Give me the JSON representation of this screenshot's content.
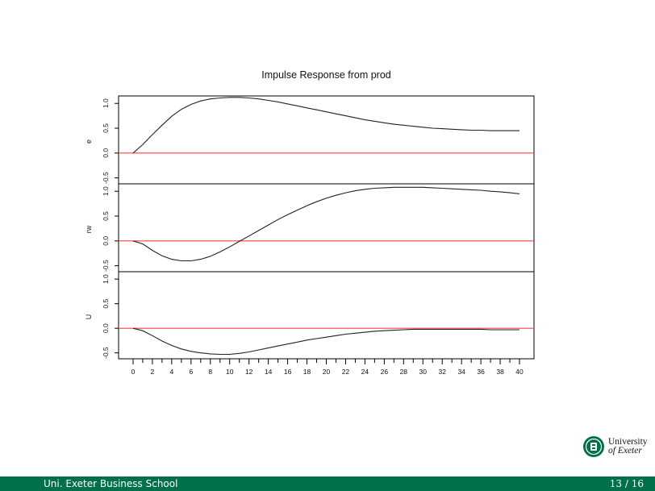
{
  "chart_data": {
    "type": "line",
    "title": "Impulse Response from prod",
    "x": [
      0,
      1,
      2,
      3,
      4,
      5,
      6,
      7,
      8,
      9,
      10,
      11,
      12,
      13,
      14,
      15,
      16,
      17,
      18,
      19,
      20,
      21,
      22,
      23,
      24,
      25,
      26,
      27,
      28,
      29,
      30,
      31,
      32,
      33,
      34,
      35,
      36,
      37,
      38,
      39,
      40
    ],
    "xticks": [
      0,
      2,
      4,
      6,
      8,
      10,
      12,
      14,
      16,
      18,
      20,
      22,
      24,
      26,
      28,
      30,
      32,
      34,
      36,
      38,
      40
    ],
    "xlim": [
      -1.5,
      41.5
    ],
    "zero_line_color": "#ff4040",
    "line_color": "#222222",
    "panels": [
      {
        "ylabel": "e",
        "ylim": [
          -0.62,
          1.15
        ],
        "yticks": [
          "-0.5",
          "0.0",
          "0.5",
          "1.0"
        ],
        "ytick_values": [
          -0.5,
          0.0,
          0.5,
          1.0
        ],
        "values": [
          0.0,
          0.17,
          0.37,
          0.56,
          0.74,
          0.88,
          0.98,
          1.05,
          1.09,
          1.11,
          1.12,
          1.12,
          1.11,
          1.09,
          1.06,
          1.03,
          0.99,
          0.95,
          0.91,
          0.87,
          0.83,
          0.79,
          0.75,
          0.71,
          0.67,
          0.64,
          0.61,
          0.58,
          0.56,
          0.54,
          0.52,
          0.5,
          0.49,
          0.48,
          0.47,
          0.46,
          0.46,
          0.45,
          0.45,
          0.45,
          0.45
        ]
      },
      {
        "ylabel": "rw",
        "ylim": [
          -0.62,
          1.15
        ],
        "yticks": [
          "-0.5",
          "0.0",
          "0.5",
          "1.0"
        ],
        "ytick_values": [
          -0.5,
          0.0,
          0.5,
          1.0
        ],
        "values": [
          0.0,
          -0.06,
          -0.19,
          -0.3,
          -0.37,
          -0.4,
          -0.4,
          -0.37,
          -0.31,
          -0.22,
          -0.12,
          -0.01,
          0.1,
          0.21,
          0.32,
          0.43,
          0.53,
          0.62,
          0.71,
          0.79,
          0.86,
          0.92,
          0.97,
          1.01,
          1.04,
          1.06,
          1.07,
          1.08,
          1.08,
          1.08,
          1.08,
          1.07,
          1.06,
          1.05,
          1.04,
          1.03,
          1.02,
          1.0,
          0.99,
          0.97,
          0.95
        ]
      },
      {
        "ylabel": "U",
        "ylim": [
          -0.62,
          1.15
        ],
        "yticks": [
          "-0.5",
          "0.0",
          "0.5",
          "1.0"
        ],
        "ytick_values": [
          -0.5,
          0.0,
          0.5,
          1.0
        ],
        "values": [
          0.0,
          -0.05,
          -0.15,
          -0.26,
          -0.35,
          -0.42,
          -0.47,
          -0.5,
          -0.52,
          -0.53,
          -0.53,
          -0.51,
          -0.48,
          -0.44,
          -0.4,
          -0.36,
          -0.32,
          -0.28,
          -0.24,
          -0.21,
          -0.18,
          -0.15,
          -0.12,
          -0.1,
          -0.08,
          -0.06,
          -0.05,
          -0.04,
          -0.03,
          -0.02,
          -0.02,
          -0.02,
          -0.02,
          -0.02,
          -0.02,
          -0.02,
          -0.02,
          -0.03,
          -0.03,
          -0.03,
          -0.03
        ]
      }
    ]
  },
  "footer": {
    "left": "Uni. Exeter Business School",
    "right": "13 / 16"
  },
  "logo": {
    "line1": "University",
    "line2": "of Exeter",
    "color": "#00704a"
  }
}
